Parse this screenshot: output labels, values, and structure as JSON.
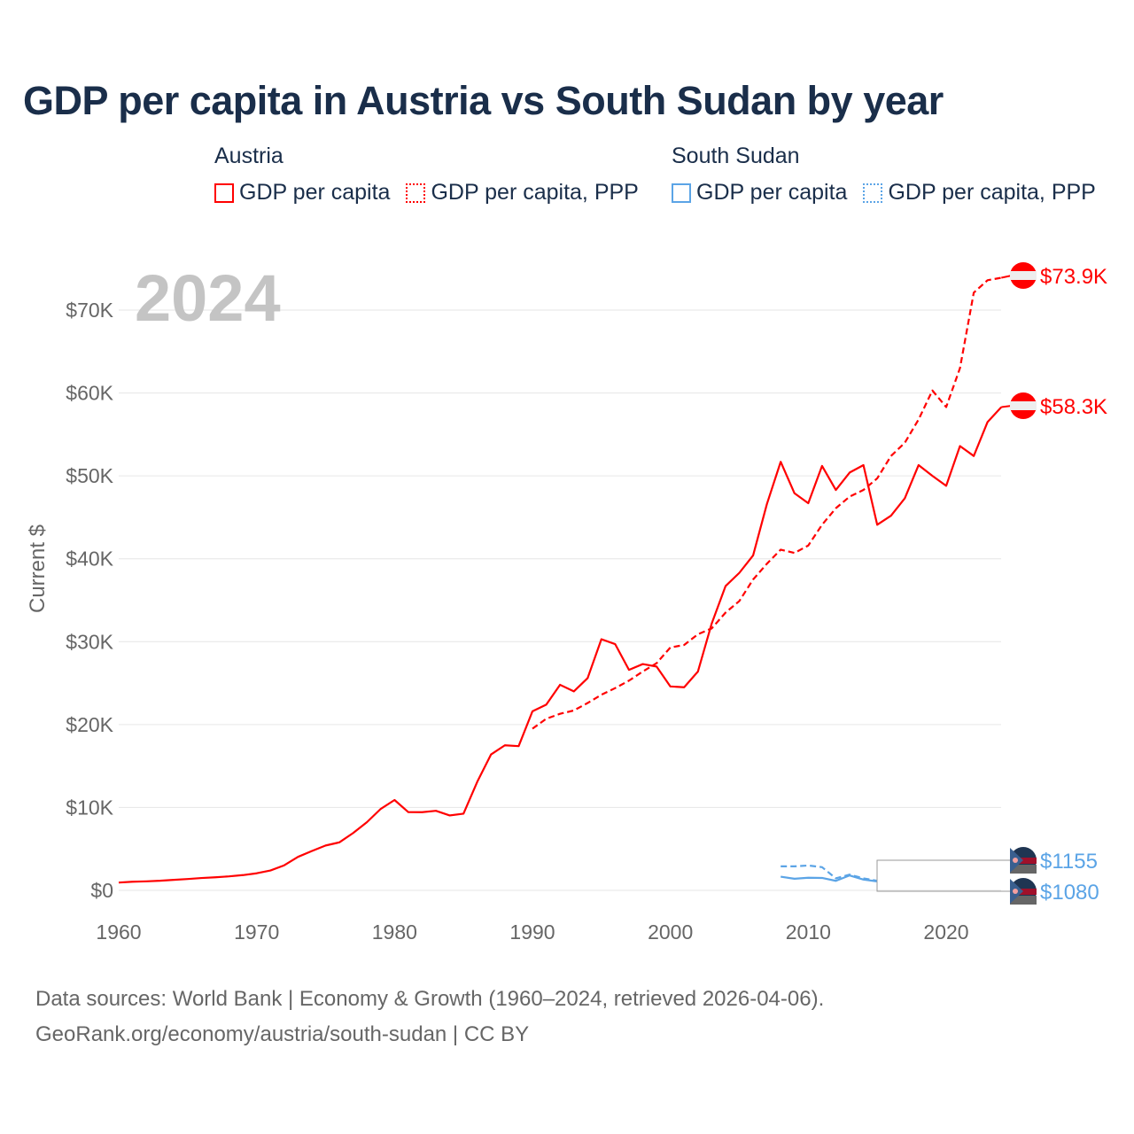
{
  "title": "GDP per capita in Austria vs South Sudan by year",
  "legend": {
    "groups": [
      {
        "name": "Austria",
        "color": "#ff0000",
        "items": [
          "GDP per capita",
          "GDP per capita, PPP"
        ]
      },
      {
        "name": "South Sudan",
        "color": "#5ba4e6",
        "items": [
          "GDP per capita",
          "GDP per capita, PPP"
        ]
      }
    ]
  },
  "year_label": "2024",
  "footer": {
    "line1": "Data sources: World Bank | Economy & Growth (1960–2024, retrieved 2026-04-06).",
    "line2": "GeoRank.org/economy/austria/south-sudan | CC BY"
  },
  "chart_data": {
    "type": "line",
    "title": "GDP per capita in Austria vs South Sudan by year",
    "xlabel": "",
    "ylabel": "Current $",
    "xlim": [
      1960,
      2024
    ],
    "ylim": [
      0,
      75000
    ],
    "xticks": [
      1960,
      1970,
      1980,
      1990,
      2000,
      2010,
      2020
    ],
    "xtick_labels": [
      "1960",
      "1970",
      "1980",
      "1990",
      "2000",
      "2010",
      "2020"
    ],
    "yticks": [
      0,
      10000,
      20000,
      30000,
      40000,
      50000,
      60000,
      70000
    ],
    "ytick_labels": [
      "$0",
      "$10K",
      "$20K",
      "$30K",
      "$40K",
      "$50K",
      "$60K",
      "$70K"
    ],
    "grid": true,
    "legend_position": "top",
    "series": [
      {
        "name": "Austria GDP per capita",
        "color": "#ff0000",
        "dash": false,
        "end_label": "$58.3K",
        "start": 1960,
        "values": [
          940,
          1040,
          1090,
          1160,
          1270,
          1370,
          1490,
          1580,
          1690,
          1840,
          2060,
          2400,
          3020,
          4040,
          4740,
          5410,
          5790,
          6920,
          8230,
          9830,
          10900,
          9440,
          9430,
          9600,
          9040,
          9250,
          13100,
          16400,
          17500,
          17400,
          21600,
          22400,
          24800,
          24000,
          25600,
          30300,
          29700,
          26600,
          27300,
          27000,
          24600,
          24500,
          26400,
          32200,
          36700,
          38300,
          40400,
          46600,
          51700,
          47900,
          46700,
          51200,
          48300,
          50400,
          51300,
          44100,
          45200,
          47300,
          51300,
          50000,
          48800,
          53600,
          52400,
          56500,
          58300
        ]
      },
      {
        "name": "Austria GDP per capita, PPP",
        "color": "#ff0000",
        "dash": true,
        "end_label": "$73.9K",
        "start": 1990,
        "values": [
          19500,
          20700,
          21300,
          21700,
          22600,
          23600,
          24400,
          25300,
          26400,
          27400,
          29300,
          29600,
          30900,
          31600,
          33500,
          34900,
          37500,
          39400,
          41100,
          40700,
          41600,
          44100,
          46100,
          47500,
          48300,
          49700,
          52400,
          54000,
          56800,
          60300,
          58300,
          63000,
          72100,
          73600,
          73900
        ]
      },
      {
        "name": "South Sudan GDP per capita",
        "color": "#5ba4e6",
        "dash": false,
        "end_label": "$1080",
        "start": 2008,
        "values": [
          1650,
          1400,
          1520,
          1500,
          1150,
          1800,
          1300,
          1080
        ]
      },
      {
        "name": "South Sudan GDP per capita, PPP",
        "color": "#5ba4e6",
        "dash": true,
        "end_label": "$1155",
        "start": 2008,
        "values": [
          2900,
          2900,
          3000,
          2800,
          1450,
          1900,
          1450,
          1155
        ]
      }
    ]
  }
}
